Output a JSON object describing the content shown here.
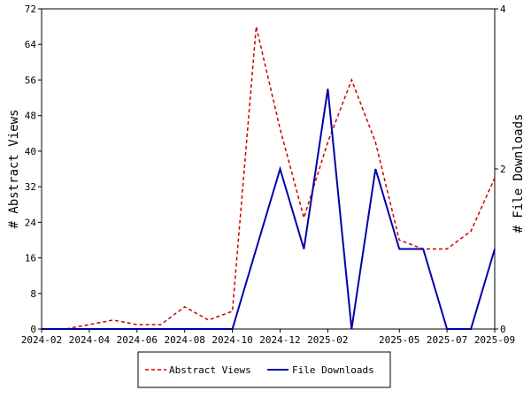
{
  "chart_data": {
    "type": "line",
    "x_categories": [
      "2024-02",
      "2024-03",
      "2024-04",
      "2024-05",
      "2024-06",
      "2024-07",
      "2024-08",
      "2024-09",
      "2024-10",
      "2024-11",
      "2024-12",
      "2025-01",
      "2025-02",
      "2025-03",
      "2025-04",
      "2025-05",
      "2025-06",
      "2025-07",
      "2025-08",
      "2025-09"
    ],
    "x_tick_labels": [
      "2024-02",
      "2024-04",
      "2024-06",
      "2024-08",
      "2024-10",
      "2024-12",
      "2025-02",
      "2025-05",
      "2025-07",
      "2025-09"
    ],
    "series": [
      {
        "name": "Abstract Views",
        "axis": "left",
        "color": "#cc0000",
        "style": "dashed",
        "values": [
          0,
          0,
          1,
          2,
          1,
          1,
          5,
          2,
          4,
          68,
          45,
          25,
          42,
          56,
          42,
          20,
          18,
          18,
          22,
          34
        ]
      },
      {
        "name": "File Downloads",
        "axis": "right",
        "color": "#0000aa",
        "style": "solid",
        "values": [
          0,
          0,
          0,
          0,
          0,
          0,
          0,
          0,
          0,
          1,
          2,
          1,
          3,
          0,
          2,
          1,
          1,
          0,
          0,
          1
        ]
      }
    ],
    "y_left": {
      "label": "# Abstract Views",
      "ylim": [
        0,
        72
      ],
      "ticks": [
        "0",
        "8",
        "16",
        "24",
        "32",
        "40",
        "48",
        "56",
        "64",
        "72"
      ]
    },
    "y_right": {
      "label": "# File Downloads",
      "ylim": [
        0,
        4
      ],
      "ticks": [
        "0",
        "2",
        "4"
      ]
    },
    "grid": false,
    "legend": "bottom"
  }
}
